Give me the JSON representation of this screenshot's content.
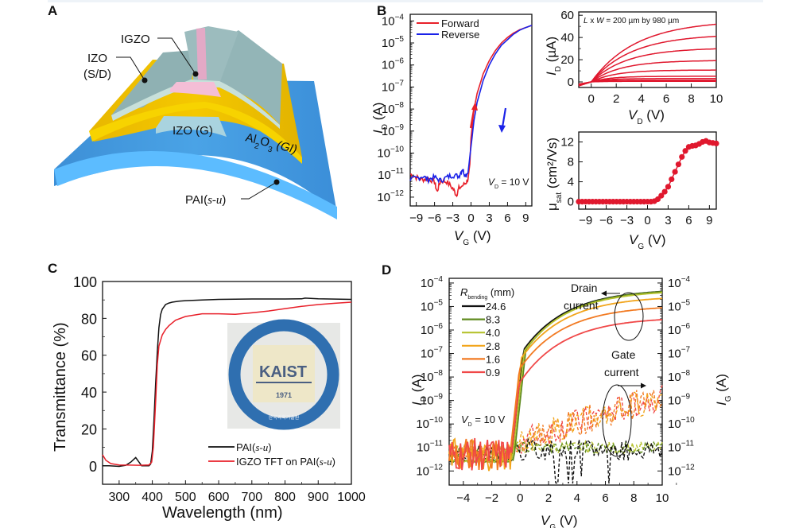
{
  "figure": {
    "panels": [
      "A",
      "B",
      "C",
      "D"
    ]
  },
  "panel_a": {
    "letter": "A",
    "labels": {
      "igzo": "IGZO",
      "izo_sd_line1": "IZO",
      "izo_sd_line2": "(S/D)",
      "izo_g": "IZO (G)",
      "al2o3_pre": "Al",
      "al2o3_sub1": "2",
      "al2o3_mid": "O",
      "al2o3_sub2": "3",
      "al2o3_post": " (GI)",
      "pai_pre": "PAI(",
      "pai_it": "s-u",
      "pai_post": ")"
    },
    "colors": {
      "substrate": "#4aa3e6",
      "substrate_edge": "#5cc0ff",
      "gi": "#f2c400",
      "gate": "#a9d3df",
      "sd": "#8fb1b3",
      "igzo": "#e9b3cf"
    }
  },
  "chart_data": [
    {
      "id": "B-transfer",
      "type": "line",
      "panel": "B",
      "xlabel_main": "V",
      "xlabel_sub": "G",
      "xlabel_unit": " (V)",
      "ylabel_main": "I",
      "ylabel_sub": "D",
      "ylabel_unit": " (A)",
      "yscale": "log",
      "xlim": [
        -10,
        10
      ],
      "ylim_exp": [
        -12.4,
        -3.7
      ],
      "xticks": [
        "-9",
        "-6",
        "-3",
        "0",
        "3",
        "6",
        "9"
      ],
      "xtick_values": [
        -9,
        -6,
        -3,
        0,
        3,
        6,
        9
      ],
      "yticks_exp": [
        -12,
        -11,
        -10,
        -9,
        -8,
        -7,
        -6,
        -5,
        -4
      ],
      "annotation": {
        "pre": "V",
        "sub": "D",
        "post": " = 10 V"
      },
      "legend": [
        {
          "name": "Forward",
          "color": "#e8202a"
        },
        {
          "name": "Reverse",
          "color": "#1a22e8"
        }
      ],
      "series": [
        {
          "name": "Forward",
          "color": "#e8202a",
          "x": [
            -10,
            -9,
            -8,
            -7,
            -6,
            -5.6,
            -5,
            -4,
            -3,
            -2.4,
            -2,
            -1,
            -0.5,
            -0.2,
            0,
            0.5,
            1,
            2,
            3,
            4,
            5,
            6,
            7,
            8,
            9,
            10
          ],
          "log_y": [
            -10.95,
            -11.1,
            -11.2,
            -11.15,
            -11.3,
            -11.75,
            -11.25,
            -11.3,
            -11.6,
            -11.9,
            -11.6,
            -11.4,
            -11.2,
            -10.5,
            -9.3,
            -8.0,
            -7.3,
            -6.4,
            -5.8,
            -5.35,
            -5.0,
            -4.75,
            -4.55,
            -4.4,
            -4.3,
            -4.2
          ]
        },
        {
          "name": "Reverse",
          "color": "#1a22e8",
          "x": [
            -10,
            -9,
            -8,
            -7,
            -6,
            -5,
            -4,
            -3,
            -2,
            -1.4,
            -1,
            -0.5,
            0,
            0.5,
            1,
            2,
            3,
            4,
            5,
            6,
            7,
            8,
            9,
            10
          ],
          "log_y": [
            -11.2,
            -11.15,
            -11.05,
            -11.2,
            -11.1,
            -11.25,
            -11.1,
            -11.0,
            -11.05,
            -10.7,
            -11.0,
            -10.9,
            -9.7,
            -8.5,
            -7.7,
            -6.7,
            -6.0,
            -5.5,
            -5.1,
            -4.85,
            -4.6,
            -4.42,
            -4.3,
            -4.2
          ]
        }
      ],
      "arrows": [
        {
          "series": "Forward",
          "direction": "up",
          "color": "#e8202a"
        },
        {
          "series": "Reverse",
          "direction": "down",
          "color": "#1a22e8"
        }
      ]
    },
    {
      "id": "B-output",
      "type": "line",
      "panel": "B",
      "xlabel_main": "V",
      "xlabel_sub": "D",
      "xlabel_unit": " (V)",
      "ylabel_main": "I",
      "ylabel_sub": "D",
      "ylabel_unit": " (µA)",
      "xlim": [
        -1,
        10
      ],
      "ylim": [
        -5,
        63
      ],
      "xticks": [
        "0",
        "2",
        "4",
        "6",
        "8",
        "10"
      ],
      "xtick_values": [
        0,
        2,
        4,
        6,
        8,
        10
      ],
      "yticks": [
        "0",
        "20",
        "40",
        "60"
      ],
      "ytick_values": [
        0,
        20,
        40,
        60
      ],
      "annotation": {
        "l": "L",
        "x": " x ",
        "w": "W",
        "rest": " = 200 µm by 980 µm"
      },
      "color": "#e0182e",
      "saturation_currents_uA": [
        54,
        42,
        30,
        19,
        10.5,
        5,
        3,
        1.5,
        0.5
      ]
    },
    {
      "id": "B-mobility",
      "type": "scatter",
      "panel": "B",
      "xlabel_main": "V",
      "xlabel_sub": "G",
      "xlabel_unit": " (V)",
      "ylabel_main": "μ",
      "ylabel_sub": "sat",
      "ylabel_unit": " (cm²/Vs)",
      "xlim": [
        -10,
        10
      ],
      "ylim": [
        -1.5,
        14
      ],
      "xticks": [
        "-9",
        "-6",
        "-3",
        "0",
        "3",
        "6",
        "9"
      ],
      "xtick_values": [
        -9,
        -6,
        -3,
        0,
        3,
        6,
        9
      ],
      "yticks": [
        "0",
        "4",
        "8",
        "12"
      ],
      "ytick_values": [
        0,
        4,
        8,
        12
      ],
      "color": "#e0182e",
      "x": [
        -10,
        -9.5,
        -9,
        -8.5,
        -8,
        -7.5,
        -7,
        -6.5,
        -6,
        -5.5,
        -5,
        -4.5,
        -4,
        -3.5,
        -3,
        -2.5,
        -2,
        -1.5,
        -1,
        -0.5,
        0,
        0.5,
        1,
        1.5,
        2,
        2.5,
        3,
        3.5,
        4,
        4.5,
        5,
        5.5,
        6,
        6.5,
        7,
        7.5,
        8,
        8.5,
        9,
        9.5,
        10
      ],
      "y": [
        0,
        0,
        0,
        0,
        0,
        0,
        0,
        0,
        0,
        0,
        0,
        0,
        0,
        0,
        0,
        0,
        0,
        0,
        0,
        0,
        0,
        0,
        0.1,
        0.5,
        1.2,
        2.0,
        3.0,
        4.5,
        6.0,
        7.5,
        9.0,
        10.2,
        11.0,
        11.2,
        11.3,
        11.6,
        12.0,
        12.2,
        11.9,
        11.8,
        11.7
      ]
    },
    {
      "id": "C-transmittance",
      "type": "line",
      "panel": "C",
      "xlabel": "Wavelength (nm)",
      "ylabel": "Transmittance (%)",
      "xlim": [
        250,
        1000
      ],
      "ylim": [
        -10,
        100
      ],
      "xticks": [
        "300",
        "400",
        "500",
        "600",
        "700",
        "800",
        "900",
        "1000"
      ],
      "xtick_values": [
        300,
        400,
        500,
        600,
        700,
        800,
        900,
        1000
      ],
      "yticks": [
        "0",
        "20",
        "40",
        "60",
        "80",
        "100"
      ],
      "ytick_values": [
        0,
        20,
        40,
        60,
        80,
        100
      ],
      "legend": [
        {
          "pre": "PAI(",
          "it": "s-u",
          "post": ")",
          "color": "#111111"
        },
        {
          "pre": "IGZO TFT on PAI(",
          "it": "s-u",
          "post": ")",
          "color": "#e8202a"
        }
      ],
      "inset": {
        "org_ring": "KOREA ADVANCED INSTITUTE OF SCIENCE AND TECHNOLOGY",
        "logo": "KAIST",
        "year": "1971",
        "korean": "한국과학기술원"
      },
      "series": [
        {
          "name": "PAI(s-u)",
          "color": "#111111",
          "x": [
            250,
            270,
            300,
            320,
            335,
            350,
            360,
            368,
            380,
            390,
            395,
            400,
            405,
            410,
            415,
            420,
            425,
            430,
            440,
            450,
            460,
            480,
            500,
            550,
            600,
            700,
            800,
            850,
            860,
            900,
            1000
          ],
          "y": [
            0,
            0,
            -0.3,
            0.3,
            2,
            4.5,
            2,
            0,
            0,
            0,
            1,
            8,
            25,
            45,
            62,
            75,
            82,
            85,
            87.5,
            88.3,
            88.8,
            89.3,
            89.6,
            90,
            90.3,
            90.5,
            90.5,
            90.6,
            91,
            90.6,
            90.3
          ]
        },
        {
          "name": "IGZO TFT on PAI(s-u)",
          "color": "#e8202a",
          "x": [
            250,
            260,
            275,
            300,
            330,
            360,
            390,
            398,
            403,
            410,
            415,
            420,
            430,
            440,
            450,
            470,
            500,
            550,
            600,
            650,
            700,
            750,
            800,
            850,
            900,
            950,
            1000
          ],
          "y": [
            6,
            3,
            1.2,
            0.5,
            0.4,
            0.3,
            0.5,
            2,
            10,
            35,
            55,
            65,
            71,
            74,
            76,
            79,
            81,
            82.5,
            82.5,
            82.2,
            83,
            84,
            85.3,
            86.5,
            87.5,
            88.2,
            88.8
          ]
        }
      ]
    },
    {
      "id": "D-bending",
      "type": "line",
      "panel": "D",
      "xlabel_main": "V",
      "xlabel_sub": "G",
      "xlabel_unit": " (V)",
      "ylabel_main": "I",
      "ylabel_sub": "D",
      "ylabel_unit": " (A)",
      "y2label_main": "I",
      "y2label_sub": "G",
      "y2label_unit": " (A)",
      "yscale": "log",
      "xlim": [
        -5,
        10
      ],
      "ylim_exp": [
        -12.6,
        -3.8
      ],
      "xticks": [
        "-4",
        "-2",
        "0",
        "2",
        "4",
        "6",
        "8",
        "10"
      ],
      "xtick_values": [
        -4,
        -2,
        0,
        2,
        4,
        6,
        8,
        10
      ],
      "yticks_exp": [
        -12,
        -11,
        -10,
        -9,
        -8,
        -7,
        -6,
        -5,
        -4
      ],
      "legend_title": {
        "pre": "R",
        "sub": "bending",
        "post": " (mm)"
      },
      "annotation": {
        "pre": "V",
        "sub": "D",
        "post": " = 10 V"
      },
      "drain_label": [
        "Drain",
        "current"
      ],
      "gate_label": [
        "Gate",
        "current"
      ],
      "series": [
        {
          "name": "24.6",
          "color": "#111111",
          "sat_exp": -4.25,
          "on_shift": 0.0
        },
        {
          "name": "8.3",
          "color": "#5f8a1e",
          "sat_exp": -4.25,
          "on_shift": 0.15
        },
        {
          "name": "4.0",
          "color": "#b6c22e",
          "sat_exp": -4.3,
          "on_shift": 0.05
        },
        {
          "name": "2.8",
          "color": "#f2a51c",
          "sat_exp": -4.55,
          "on_shift": -0.1
        },
        {
          "name": "1.6",
          "color": "#f27a22",
          "sat_exp": -4.95,
          "on_shift": -0.15
        },
        {
          "name": "0.9",
          "color": "#f04848",
          "sat_exp": -5.45,
          "on_shift": -0.05
        }
      ]
    }
  ]
}
